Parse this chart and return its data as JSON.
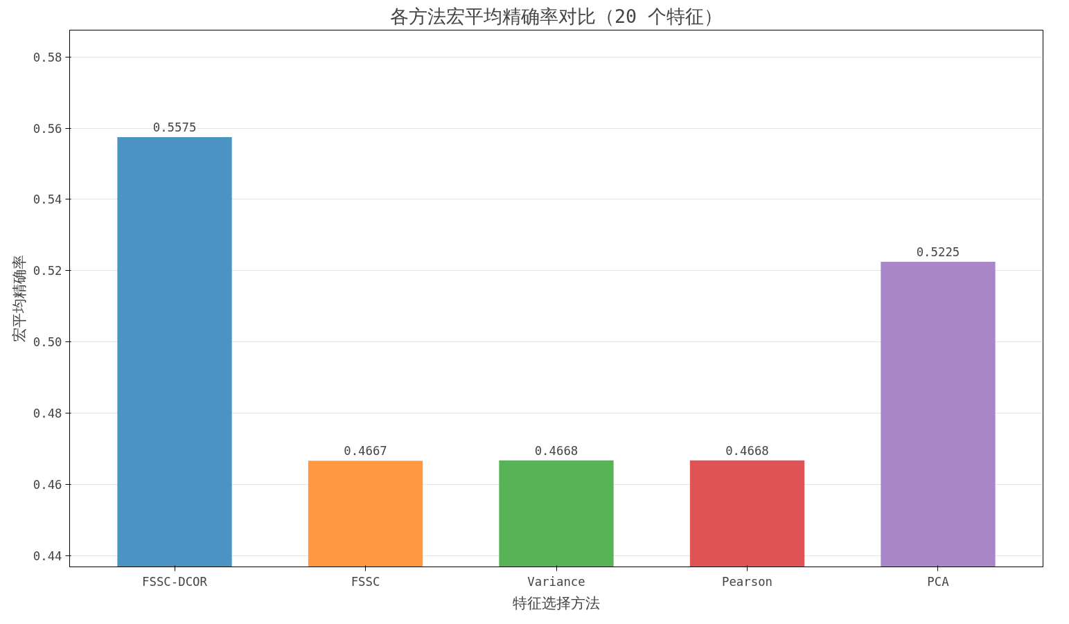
{
  "chart_data": {
    "type": "bar",
    "title": "各方法宏平均精确率对比（20 个特征）",
    "xlabel": "特征选择方法",
    "ylabel": "宏平均精确率",
    "categories": [
      "FSSC-DCOR",
      "FSSC",
      "Variance",
      "Pearson",
      "PCA"
    ],
    "values": [
      0.5575,
      0.4667,
      0.4668,
      0.4668,
      0.5225
    ],
    "colors": [
      "#4b93c3",
      "#ff983e",
      "#56b356",
      "#df5355",
      "#a886c8"
    ],
    "ylim": [
      0.4369,
      0.5875
    ],
    "yticks": [
      0.44,
      0.46,
      0.48,
      {
        "value": 0.5,
        "label": "0.50"
      },
      0.52,
      0.54,
      0.56,
      0.58
    ],
    "grid": "y",
    "data_labels": true
  }
}
